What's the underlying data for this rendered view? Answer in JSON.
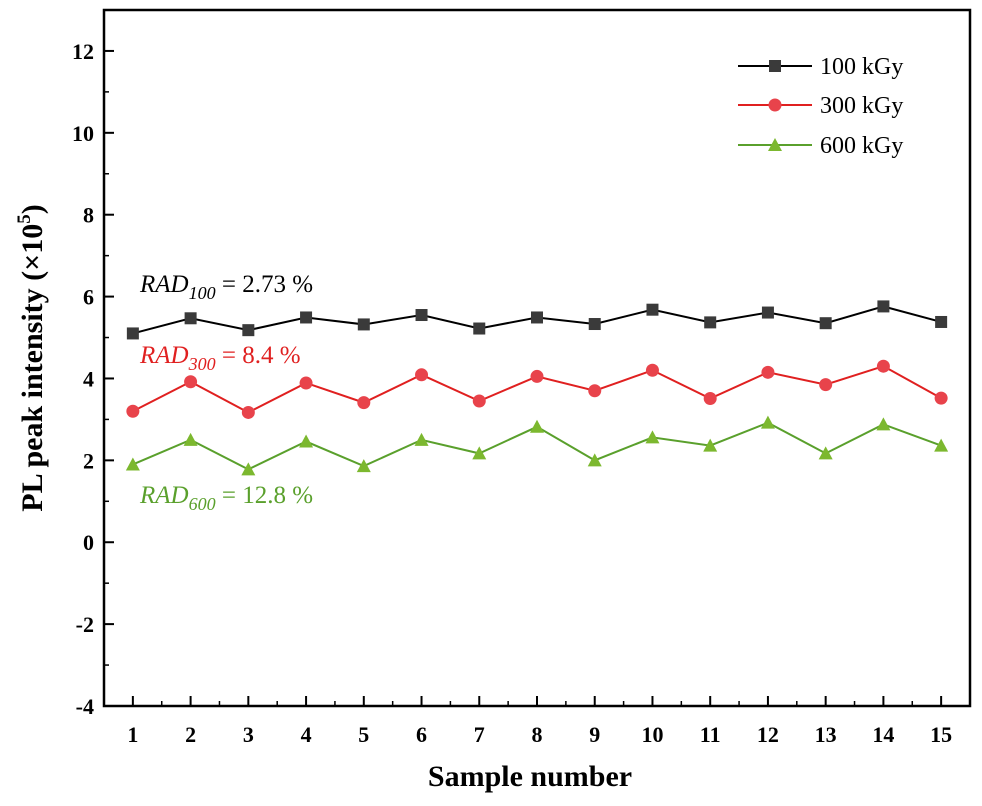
{
  "chart_data": {
    "type": "line",
    "title": "",
    "xlabel": "Sample number",
    "ylabel": {
      "main": "PL peak intensity (×10",
      "sup": "5",
      "end": ")"
    },
    "xlim": [
      0.5,
      15.5
    ],
    "ylim": [
      -4,
      13
    ],
    "grid": false,
    "legend_position": "top-right",
    "x": [
      1,
      2,
      3,
      4,
      5,
      6,
      7,
      8,
      9,
      10,
      11,
      12,
      13,
      14,
      15
    ],
    "x_ticks": [
      "1",
      "2",
      "3",
      "4",
      "5",
      "6",
      "7",
      "8",
      "9",
      "10",
      "11",
      "12",
      "13",
      "14",
      "15"
    ],
    "y_ticks": [
      "-4",
      "-2",
      "0",
      "2",
      "4",
      "6",
      "8",
      "10",
      "12"
    ],
    "y_tick_values": [
      -4,
      -2,
      0,
      2,
      4,
      6,
      8,
      10,
      12
    ],
    "series": [
      {
        "name": "100 kGy",
        "color": "#000000",
        "marker_color": "#3a3a3a",
        "marker": "square",
        "values": [
          5.1,
          5.47,
          5.18,
          5.49,
          5.32,
          5.55,
          5.22,
          5.49,
          5.33,
          5.68,
          5.37,
          5.61,
          5.35,
          5.76,
          5.38
        ]
      },
      {
        "name": "300 kGy",
        "color": "#e02020",
        "marker_color": "#e8434b",
        "marker": "circle",
        "values": [
          3.2,
          3.92,
          3.17,
          3.89,
          3.41,
          4.09,
          3.45,
          4.05,
          3.7,
          4.2,
          3.51,
          4.15,
          3.85,
          4.3,
          3.52
        ]
      },
      {
        "name": "600 kGy",
        "color": "#5aa02c",
        "marker_color": "#7cb82f",
        "marker": "triangle",
        "values": [
          1.9,
          2.5,
          1.78,
          2.46,
          1.86,
          2.5,
          2.17,
          2.82,
          2.0,
          2.56,
          2.36,
          2.92,
          2.17,
          2.88,
          2.36
        ]
      }
    ],
    "annotations": [
      {
        "prefix": "RAD",
        "sub": "100",
        "suffix": " = 2.73 %",
        "color": "#000000"
      },
      {
        "prefix": "RAD",
        "sub": "300",
        "suffix": " = 8.4 %",
        "color": "#e02020"
      },
      {
        "prefix": "RAD",
        "sub": "600",
        "suffix": " = 12.8 %",
        "color": "#5aa02c"
      }
    ]
  }
}
